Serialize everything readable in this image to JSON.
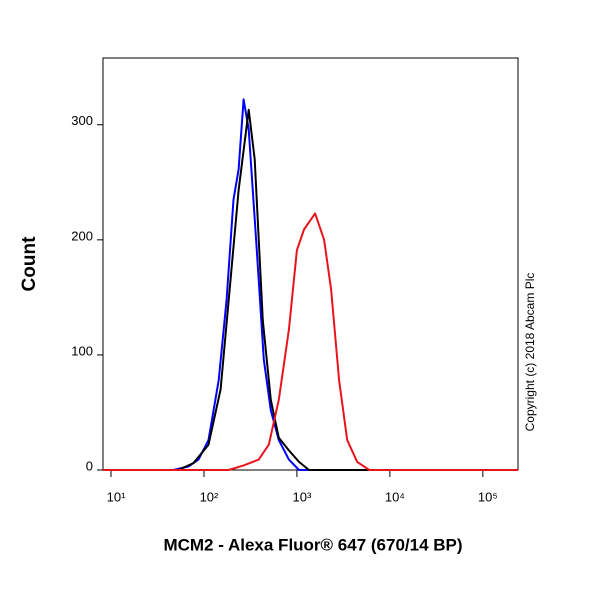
{
  "chart_data": {
    "type": "line",
    "ylabel": "Count",
    "xlabel": "MCM2 - Alexa Fluor® 647 (670/14 BP)",
    "annotation": "Copyright (c) 2018 Abcam Plc",
    "xscale": "log",
    "xlim": [
      8.2,
      239000
    ],
    "ylim": [
      0,
      358
    ],
    "xticks": [
      {
        "value": 10,
        "label": "10¹"
      },
      {
        "value": 100,
        "label": "10²"
      },
      {
        "value": 1000,
        "label": "10³"
      },
      {
        "value": 10000,
        "label": "10⁴"
      },
      {
        "value": 100000,
        "label": "10⁵"
      }
    ],
    "yticks": [
      0,
      100,
      200,
      300
    ],
    "series": [
      {
        "color": "#0000ff",
        "x": [
          8.2,
          46.8,
          67.9,
          87.3,
          112,
          144,
          175,
          208,
          236,
          267,
          303,
          370,
          440,
          524,
          638,
          820,
          1052,
          239000
        ],
        "values": [
          0,
          0,
          3,
          9,
          26,
          78,
          148,
          235,
          261,
          322,
          296,
          191,
          96,
          52,
          26,
          9,
          0,
          0
        ]
      },
      {
        "color": "#000000",
        "x": [
          8.2,
          53,
          77,
          112,
          151,
          193,
          236,
          303,
          351,
          429,
          524,
          638,
          820,
          1052,
          1349,
          239000
        ],
        "values": [
          0,
          0,
          6,
          22,
          70,
          165,
          243,
          313,
          270,
          130,
          61,
          28,
          17,
          7,
          0,
          0
        ]
      },
      {
        "color": "#e8141c",
        "x": [
          8.2,
          184,
          267,
          388,
          498,
          638,
          820,
          1000,
          1191,
          1567,
          1959,
          2334,
          2845,
          3474,
          4457,
          6000,
          239000
        ],
        "values": [
          0,
          0,
          4,
          9,
          22,
          61,
          122,
          191,
          209,
          223,
          200,
          157,
          78,
          26,
          7,
          0,
          0
        ]
      }
    ]
  }
}
